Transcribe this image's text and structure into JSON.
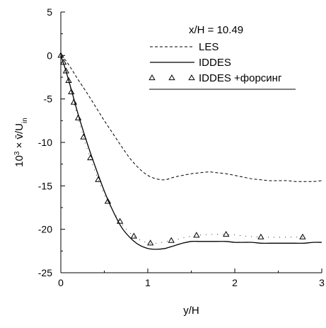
{
  "chart_data": {
    "type": "line",
    "title": "",
    "annotation": "x/H = 10.49",
    "xlabel": "y/H",
    "ylabel": {
      "prefix": "10",
      "exponent": "3",
      "mid": " × ",
      "var": "v̄",
      "slash": "/U",
      "subscript": "in"
    },
    "xlim": [
      0,
      3
    ],
    "ylim": [
      -25,
      5
    ],
    "xticks": [
      0,
      1,
      2,
      3
    ],
    "yticks": [
      5,
      0,
      -5,
      -10,
      -15,
      -20,
      -25
    ],
    "grid": false,
    "legend_position": "top-right",
    "series": [
      {
        "name": "LES",
        "style": "dashed",
        "x": [
          0,
          0.05,
          0.1,
          0.15,
          0.2,
          0.3,
          0.4,
          0.5,
          0.6,
          0.7,
          0.8,
          0.9,
          1.0,
          1.1,
          1.2,
          1.3,
          1.4,
          1.5,
          1.6,
          1.7,
          1.8,
          1.9,
          2.0,
          2.1,
          2.2,
          2.3,
          2.4,
          2.5,
          2.6,
          2.7,
          2.8,
          2.9,
          3.0
        ],
        "y": [
          0,
          -0.5,
          -1.2,
          -2.0,
          -2.8,
          -4.3,
          -5.9,
          -7.5,
          -9.0,
          -10.5,
          -11.9,
          -13.0,
          -13.8,
          -14.2,
          -14.3,
          -14.0,
          -13.8,
          -13.6,
          -13.5,
          -13.4,
          -13.5,
          -13.6,
          -13.8,
          -14.0,
          -14.2,
          -14.3,
          -14.4,
          -14.4,
          -14.4,
          -14.5,
          -14.5,
          -14.5,
          -14.4
        ]
      },
      {
        "name": "IDDES",
        "style": "solid",
        "x": [
          0,
          0.05,
          0.1,
          0.15,
          0.2,
          0.3,
          0.4,
          0.5,
          0.6,
          0.7,
          0.8,
          0.9,
          1.0,
          1.1,
          1.2,
          1.3,
          1.4,
          1.5,
          1.6,
          1.7,
          1.8,
          1.9,
          2.0,
          2.1,
          2.2,
          2.3,
          2.4,
          2.5,
          2.6,
          2.7,
          2.8,
          2.9,
          3.0
        ],
        "y": [
          0,
          -1.5,
          -3.2,
          -5.0,
          -6.8,
          -10.0,
          -12.9,
          -15.6,
          -17.9,
          -19.8,
          -21.0,
          -21.8,
          -22.2,
          -22.3,
          -22.2,
          -21.9,
          -21.6,
          -21.4,
          -21.4,
          -21.4,
          -21.4,
          -21.4,
          -21.5,
          -21.5,
          -21.5,
          -21.6,
          -21.6,
          -21.6,
          -21.6,
          -21.6,
          -21.6,
          -21.5,
          -21.5
        ]
      },
      {
        "name": "IDDES +форсинг",
        "style": "markers",
        "marker": "triangle",
        "x": [
          0,
          0.03,
          0.06,
          0.09,
          0.12,
          0.15,
          0.2,
          0.26,
          0.34,
          0.43,
          0.54,
          0.68,
          0.84,
          1.03,
          1.27,
          1.56,
          1.9,
          2.3,
          2.78
        ],
        "y": [
          0,
          -0.8,
          -1.8,
          -2.9,
          -4.2,
          -5.4,
          -7.2,
          -9.4,
          -11.8,
          -14.3,
          -16.8,
          -19.1,
          -20.8,
          -21.6,
          -21.3,
          -20.7,
          -20.6,
          -20.9,
          -20.9
        ]
      }
    ]
  }
}
